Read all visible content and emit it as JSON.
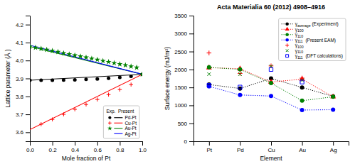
{
  "chart_data": [
    {
      "type": "scatter",
      "xlabel": "Mole fraction of Pt",
      "ylabel": "Lattice parameter (Å )",
      "xlim": [
        0.0,
        1.0
      ],
      "ylim": [
        3.55,
        4.25
      ],
      "xticks": [
        {
          "value": 0,
          "label": "0.0"
        },
        0.2,
        0.4,
        0.6,
        0.8,
        {
          "value": 1,
          "label": "1.0"
        }
      ],
      "yticks": [
        3.6,
        3.7,
        3.8,
        3.9,
        {
          "value": 4,
          "label": "4.0"
        },
        4.1,
        4.2
      ],
      "grid": false,
      "legend": "lower right",
      "legend_title": "Exp.  Present",
      "series": [
        {
          "name": "Pd-Pt",
          "type": "line",
          "color": "black",
          "line_style": "solid",
          "x": [
            0,
            1
          ],
          "values": [
            3.89,
            3.923
          ]
        },
        {
          "name": "Cu-Pt",
          "type": "line",
          "color": "red",
          "line_style": "solid",
          "x": [
            0,
            1
          ],
          "values": [
            3.615,
            3.923
          ]
        },
        {
          "name": "Au-Pt",
          "type": "line",
          "color": "green",
          "line_style": "solid",
          "x": [
            0,
            1
          ],
          "values": [
            4.078,
            3.923
          ]
        },
        {
          "name": "Ag-Pt",
          "type": "line",
          "color": "blue",
          "line_style": "solid",
          "x": [
            0,
            1
          ],
          "values": [
            4.085,
            3.923
          ]
        },
        {
          "name": "Pd-Pt",
          "type": "scatter",
          "color": "black",
          "marker": "circle",
          "x": [
            0.0,
            0.1,
            0.2,
            0.3,
            0.4,
            0.5,
            0.6,
            0.7,
            0.8,
            0.9,
            1.0
          ],
          "values": [
            3.89,
            3.89,
            3.89,
            3.891,
            3.892,
            3.895,
            3.897,
            3.901,
            3.906,
            3.912,
            3.923
          ]
        },
        {
          "name": "Cu-Pt",
          "type": "scatter",
          "color": "red",
          "marker": "plus",
          "x": [
            0.1,
            0.2,
            0.3,
            0.4,
            0.5,
            0.6,
            0.7,
            0.8,
            0.9
          ],
          "values": [
            3.645,
            3.672,
            3.7,
            3.728,
            3.755,
            3.783,
            3.81,
            3.838,
            3.866
          ]
        },
        {
          "name": "Au-Pt",
          "type": "scatter",
          "color": "green",
          "marker": "star",
          "x": [
            0.0,
            0.05,
            0.1,
            0.15,
            0.2,
            0.25,
            0.3,
            0.35,
            0.4,
            0.45,
            0.5,
            0.55,
            0.6,
            0.65,
            0.7,
            0.75,
            0.8,
            0.85,
            0.9,
            0.95,
            1.0
          ],
          "values": [
            4.078,
            4.072,
            4.066,
            4.06,
            4.054,
            4.048,
            4.041,
            4.035,
            4.029,
            4.023,
            4.017,
            4.011,
            4.005,
            3.998,
            3.992,
            3.986,
            3.98,
            3.974,
            3.967,
            3.961,
            3.923
          ]
        }
      ]
    },
    {
      "type": "line",
      "title": "Acta Materialia 60 (2012) 4908–4916",
      "xlabel": "Element",
      "ylabel": "Surface energy (mJ/m²)",
      "categories": [
        "Pt",
        "Pd",
        "Cu",
        "Au",
        "Ag"
      ],
      "ylim": [
        0,
        3500
      ],
      "yticks": [
        0,
        500,
        1000,
        1500,
        2000,
        2500,
        3000,
        3500
      ],
      "grid": false,
      "legend": "upper right",
      "series": [
        {
          "name": "γaverage (Experiment)",
          "color": "black",
          "marker": "circle",
          "line_style": "dotted",
          "values": [
            1580,
            1470,
            1750,
            1500,
            1250
          ]
        },
        {
          "name": "γ100",
          "color": "red",
          "marker": "triangle",
          "line_style": "dotted",
          "values": [
            2050,
            2020,
            1650,
            1730,
            1240
          ]
        },
        {
          "name": "γ110",
          "color": "green",
          "marker": "circle",
          "line_style": "dotted",
          "values": [
            2060,
            2000,
            1620,
            1130,
            1240
          ]
        },
        {
          "name": "γ111  (Present EAM)",
          "color": "blue",
          "marker": "circle",
          "line_style": "dotted",
          "values": [
            1530,
            1290,
            1260,
            870,
            880
          ]
        },
        {
          "name": "γ100",
          "color": "red",
          "marker": "plus",
          "line_style": "none",
          "values": [
            2460,
            1890,
            2100,
            1760,
            null
          ]
        },
        {
          "name": "γ110",
          "color": "green",
          "marker": "x",
          "line_style": "none",
          "values": [
            1870,
            1870,
            2090,
            1700,
            null
          ]
        },
        {
          "name": "γ111  (DFT calculations)",
          "color": "blue",
          "marker": "square",
          "line_style": "none",
          "values": [
            1560,
            1510,
            2000,
            1650,
            null
          ]
        }
      ]
    }
  ]
}
